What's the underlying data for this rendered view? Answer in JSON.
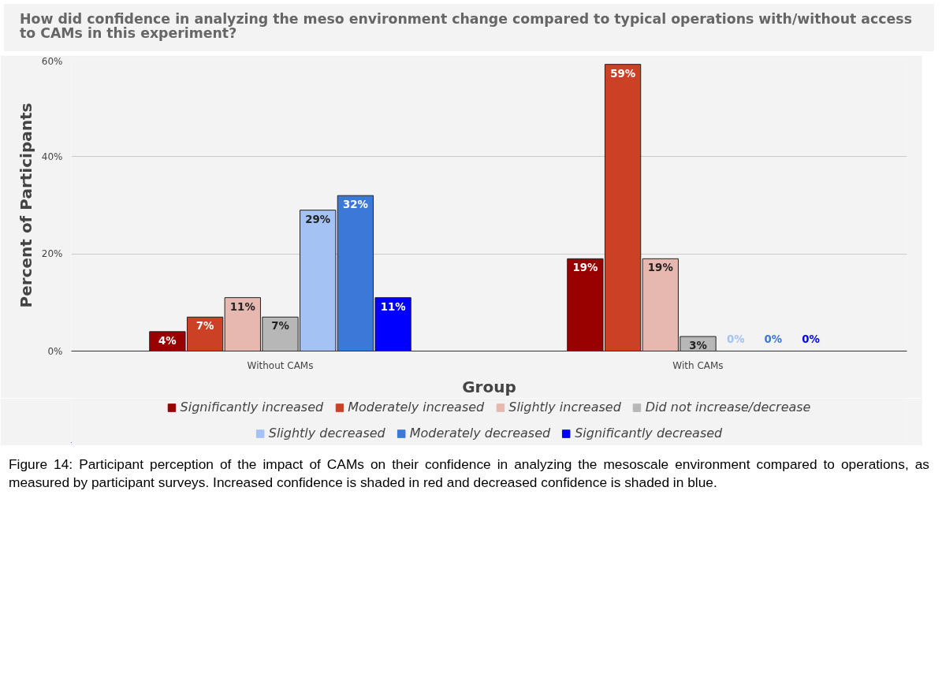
{
  "chart_data": {
    "type": "bar",
    "title": "How did confidence in analyzing the meso environment change compared to typical operations with/without access to CAMs in this experiment?",
    "xlabel": "Group",
    "ylabel": "Percent of Participants",
    "categories": [
      "Without CAMs",
      "With CAMs"
    ],
    "series": [
      {
        "name": "Significantly increased",
        "color": "#990000",
        "values": [
          4,
          19
        ],
        "value_labels": [
          "4%",
          "19%"
        ]
      },
      {
        "name": "Moderately increased",
        "color": "#cc4125",
        "values": [
          7,
          59
        ],
        "value_labels": [
          "7%",
          "59%"
        ]
      },
      {
        "name": "Slightly increased",
        "color": "#e6b8af",
        "values": [
          11,
          19
        ],
        "value_labels": [
          "11%",
          "19%"
        ]
      },
      {
        "name": "Did not increase/decrease",
        "color": "#b7b7b7",
        "values": [
          7,
          3
        ],
        "value_labels": [
          "7%",
          "3%"
        ]
      },
      {
        "name": "Slightly decreased",
        "color": "#a4c2f4",
        "values": [
          29,
          0
        ],
        "value_labels": [
          "29%",
          "0%"
        ]
      },
      {
        "name": "Moderately decreased",
        "color": "#3c78d8",
        "values": [
          32,
          0
        ],
        "value_labels": [
          "32%",
          "0%"
        ]
      },
      {
        "name": "Significantly decreased",
        "color": "#0000ff",
        "values": [
          11,
          0
        ],
        "value_labels": [
          "11%",
          "0%"
        ]
      }
    ],
    "ylim": [
      0,
      60
    ],
    "yticks": [
      {
        "value": 0,
        "label": "0%"
      },
      {
        "value": 20,
        "label": "20%"
      },
      {
        "value": 40,
        "label": "40%"
      },
      {
        "value": 60,
        "label": "60%"
      }
    ],
    "grid": "y",
    "legend": "bottom",
    "annotations": [
      "Figure 14: Participant perception of the impact of CAMs on their confidence in analyzing the mesoscale environment compared to operations, as measured by participant surveys. Increased confidence is shaded in red and decreased confidence is shaded in blue."
    ]
  }
}
